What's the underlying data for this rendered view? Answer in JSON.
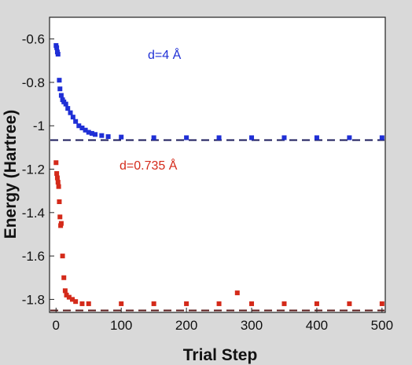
{
  "chart_data": {
    "type": "scatter",
    "title": "",
    "xlabel": "Trial Step",
    "ylabel": "Energy (Hartree)",
    "xlim": [
      -10,
      505
    ],
    "ylim": [
      -1.86,
      -0.5
    ],
    "xticks": [
      0,
      100,
      200,
      300,
      400,
      500
    ],
    "yticks": [
      -0.6,
      -0.8,
      -1,
      -1.2,
      -1.4,
      -1.6,
      -1.8
    ],
    "grid": false,
    "colors": {
      "blue": "#1f2fd6",
      "red": "#d42a1a"
    },
    "series": [
      {
        "annotation": "d=4 Å",
        "color": "#1f2fd6",
        "reference_energy": -1.066,
        "points": [
          [
            0,
            -0.63
          ],
          [
            1,
            -0.64
          ],
          [
            2,
            -0.66
          ],
          [
            3,
            -0.67
          ],
          [
            5,
            -0.79
          ],
          [
            6,
            -0.83
          ],
          [
            8,
            -0.86
          ],
          [
            10,
            -0.88
          ],
          [
            12,
            -0.89
          ],
          [
            15,
            -0.9
          ],
          [
            18,
            -0.92
          ],
          [
            22,
            -0.94
          ],
          [
            26,
            -0.96
          ],
          [
            30,
            -0.98
          ],
          [
            35,
            -1.0
          ],
          [
            40,
            -1.01
          ],
          [
            45,
            -1.02
          ],
          [
            50,
            -1.03
          ],
          [
            55,
            -1.035
          ],
          [
            60,
            -1.04
          ],
          [
            70,
            -1.045
          ],
          [
            80,
            -1.05
          ],
          [
            100,
            -1.052
          ],
          [
            150,
            -1.055
          ],
          [
            200,
            -1.055
          ],
          [
            250,
            -1.055
          ],
          [
            300,
            -1.055
          ],
          [
            350,
            -1.055
          ],
          [
            400,
            -1.055
          ],
          [
            450,
            -1.055
          ],
          [
            500,
            -1.055
          ]
        ]
      },
      {
        "annotation": "d=0.735 Å",
        "color": "#d42a1a",
        "reference_energy": -1.851,
        "points": [
          [
            0,
            -1.17
          ],
          [
            1,
            -1.22
          ],
          [
            2,
            -1.24
          ],
          [
            3,
            -1.26
          ],
          [
            4,
            -1.28
          ],
          [
            5,
            -1.35
          ],
          [
            6,
            -1.42
          ],
          [
            7,
            -1.46
          ],
          [
            8,
            -1.45
          ],
          [
            10,
            -1.6
          ],
          [
            12,
            -1.7
          ],
          [
            14,
            -1.76
          ],
          [
            16,
            -1.78
          ],
          [
            20,
            -1.79
          ],
          [
            25,
            -1.8
          ],
          [
            30,
            -1.81
          ],
          [
            40,
            -1.82
          ],
          [
            50,
            -1.82
          ],
          [
            100,
            -1.82
          ],
          [
            150,
            -1.82
          ],
          [
            200,
            -1.82
          ],
          [
            250,
            -1.82
          ],
          [
            278,
            -1.77
          ],
          [
            300,
            -1.82
          ],
          [
            350,
            -1.82
          ],
          [
            400,
            -1.82
          ],
          [
            450,
            -1.82
          ],
          [
            500,
            -1.82
          ]
        ]
      }
    ]
  }
}
